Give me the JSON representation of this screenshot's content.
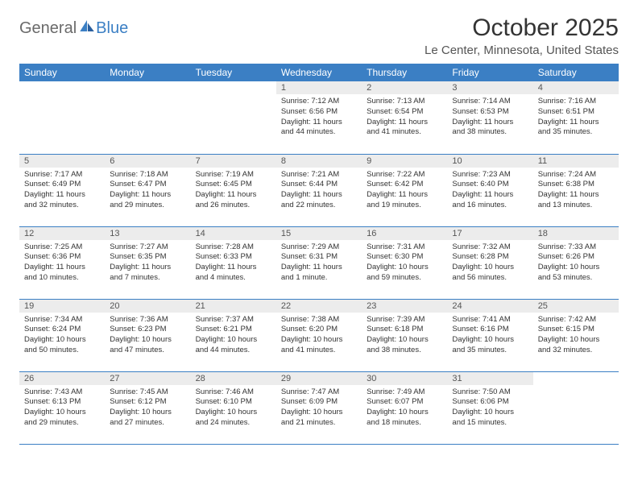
{
  "logo": {
    "text1": "General",
    "text2": "Blue"
  },
  "title": "October 2025",
  "location": "Le Center, Minnesota, United States",
  "colors": {
    "header_bg": "#3b7fc4",
    "header_text": "#ffffff",
    "daynum_bg": "#ececec",
    "border": "#3b7fc4",
    "logo_gray": "#6a6a6a",
    "logo_blue": "#3b7fc4"
  },
  "weekdays": [
    "Sunday",
    "Monday",
    "Tuesday",
    "Wednesday",
    "Thursday",
    "Friday",
    "Saturday"
  ],
  "weeks": [
    [
      {
        "n": "",
        "sr": "",
        "ss": "",
        "dl": ""
      },
      {
        "n": "",
        "sr": "",
        "ss": "",
        "dl": ""
      },
      {
        "n": "",
        "sr": "",
        "ss": "",
        "dl": ""
      },
      {
        "n": "1",
        "sr": "Sunrise: 7:12 AM",
        "ss": "Sunset: 6:56 PM",
        "dl": "Daylight: 11 hours and 44 minutes."
      },
      {
        "n": "2",
        "sr": "Sunrise: 7:13 AM",
        "ss": "Sunset: 6:54 PM",
        "dl": "Daylight: 11 hours and 41 minutes."
      },
      {
        "n": "3",
        "sr": "Sunrise: 7:14 AM",
        "ss": "Sunset: 6:53 PM",
        "dl": "Daylight: 11 hours and 38 minutes."
      },
      {
        "n": "4",
        "sr": "Sunrise: 7:16 AM",
        "ss": "Sunset: 6:51 PM",
        "dl": "Daylight: 11 hours and 35 minutes."
      }
    ],
    [
      {
        "n": "5",
        "sr": "Sunrise: 7:17 AM",
        "ss": "Sunset: 6:49 PM",
        "dl": "Daylight: 11 hours and 32 minutes."
      },
      {
        "n": "6",
        "sr": "Sunrise: 7:18 AM",
        "ss": "Sunset: 6:47 PM",
        "dl": "Daylight: 11 hours and 29 minutes."
      },
      {
        "n": "7",
        "sr": "Sunrise: 7:19 AM",
        "ss": "Sunset: 6:45 PM",
        "dl": "Daylight: 11 hours and 26 minutes."
      },
      {
        "n": "8",
        "sr": "Sunrise: 7:21 AM",
        "ss": "Sunset: 6:44 PM",
        "dl": "Daylight: 11 hours and 22 minutes."
      },
      {
        "n": "9",
        "sr": "Sunrise: 7:22 AM",
        "ss": "Sunset: 6:42 PM",
        "dl": "Daylight: 11 hours and 19 minutes."
      },
      {
        "n": "10",
        "sr": "Sunrise: 7:23 AM",
        "ss": "Sunset: 6:40 PM",
        "dl": "Daylight: 11 hours and 16 minutes."
      },
      {
        "n": "11",
        "sr": "Sunrise: 7:24 AM",
        "ss": "Sunset: 6:38 PM",
        "dl": "Daylight: 11 hours and 13 minutes."
      }
    ],
    [
      {
        "n": "12",
        "sr": "Sunrise: 7:25 AM",
        "ss": "Sunset: 6:36 PM",
        "dl": "Daylight: 11 hours and 10 minutes."
      },
      {
        "n": "13",
        "sr": "Sunrise: 7:27 AM",
        "ss": "Sunset: 6:35 PM",
        "dl": "Daylight: 11 hours and 7 minutes."
      },
      {
        "n": "14",
        "sr": "Sunrise: 7:28 AM",
        "ss": "Sunset: 6:33 PM",
        "dl": "Daylight: 11 hours and 4 minutes."
      },
      {
        "n": "15",
        "sr": "Sunrise: 7:29 AM",
        "ss": "Sunset: 6:31 PM",
        "dl": "Daylight: 11 hours and 1 minute."
      },
      {
        "n": "16",
        "sr": "Sunrise: 7:31 AM",
        "ss": "Sunset: 6:30 PM",
        "dl": "Daylight: 10 hours and 59 minutes."
      },
      {
        "n": "17",
        "sr": "Sunrise: 7:32 AM",
        "ss": "Sunset: 6:28 PM",
        "dl": "Daylight: 10 hours and 56 minutes."
      },
      {
        "n": "18",
        "sr": "Sunrise: 7:33 AM",
        "ss": "Sunset: 6:26 PM",
        "dl": "Daylight: 10 hours and 53 minutes."
      }
    ],
    [
      {
        "n": "19",
        "sr": "Sunrise: 7:34 AM",
        "ss": "Sunset: 6:24 PM",
        "dl": "Daylight: 10 hours and 50 minutes."
      },
      {
        "n": "20",
        "sr": "Sunrise: 7:36 AM",
        "ss": "Sunset: 6:23 PM",
        "dl": "Daylight: 10 hours and 47 minutes."
      },
      {
        "n": "21",
        "sr": "Sunrise: 7:37 AM",
        "ss": "Sunset: 6:21 PM",
        "dl": "Daylight: 10 hours and 44 minutes."
      },
      {
        "n": "22",
        "sr": "Sunrise: 7:38 AM",
        "ss": "Sunset: 6:20 PM",
        "dl": "Daylight: 10 hours and 41 minutes."
      },
      {
        "n": "23",
        "sr": "Sunrise: 7:39 AM",
        "ss": "Sunset: 6:18 PM",
        "dl": "Daylight: 10 hours and 38 minutes."
      },
      {
        "n": "24",
        "sr": "Sunrise: 7:41 AM",
        "ss": "Sunset: 6:16 PM",
        "dl": "Daylight: 10 hours and 35 minutes."
      },
      {
        "n": "25",
        "sr": "Sunrise: 7:42 AM",
        "ss": "Sunset: 6:15 PM",
        "dl": "Daylight: 10 hours and 32 minutes."
      }
    ],
    [
      {
        "n": "26",
        "sr": "Sunrise: 7:43 AM",
        "ss": "Sunset: 6:13 PM",
        "dl": "Daylight: 10 hours and 29 minutes."
      },
      {
        "n": "27",
        "sr": "Sunrise: 7:45 AM",
        "ss": "Sunset: 6:12 PM",
        "dl": "Daylight: 10 hours and 27 minutes."
      },
      {
        "n": "28",
        "sr": "Sunrise: 7:46 AM",
        "ss": "Sunset: 6:10 PM",
        "dl": "Daylight: 10 hours and 24 minutes."
      },
      {
        "n": "29",
        "sr": "Sunrise: 7:47 AM",
        "ss": "Sunset: 6:09 PM",
        "dl": "Daylight: 10 hours and 21 minutes."
      },
      {
        "n": "30",
        "sr": "Sunrise: 7:49 AM",
        "ss": "Sunset: 6:07 PM",
        "dl": "Daylight: 10 hours and 18 minutes."
      },
      {
        "n": "31",
        "sr": "Sunrise: 7:50 AM",
        "ss": "Sunset: 6:06 PM",
        "dl": "Daylight: 10 hours and 15 minutes."
      },
      {
        "n": "",
        "sr": "",
        "ss": "",
        "dl": ""
      }
    ]
  ]
}
